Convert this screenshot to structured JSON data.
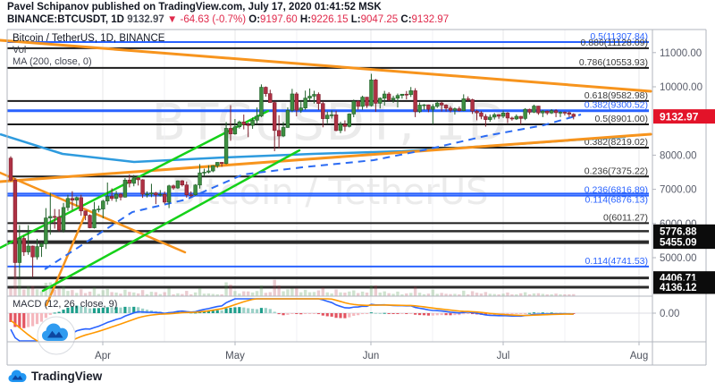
{
  "header": {
    "line1": "Pavel Schipanov published on TradingView.com, July 17, 2020 01:41:52 MSK",
    "symbol_bar": {
      "symbol": "BINANCE:BTCUSDT, 1D",
      "price": "9132.97",
      "change": "▼ -64.63 (-0.7%)",
      "o_label": "O:",
      "o": "9197.60",
      "h_label": "H:",
      "h": "9226.15",
      "l_label": "L:",
      "l": "9047.25",
      "c_label": "C:",
      "c": "9132.97"
    }
  },
  "legend": {
    "title": "Bitcoin / TetherUS, 1D, BINANCE",
    "vol": "Vol",
    "ma": "MA (200, close, 0)"
  },
  "watermark": {
    "line1": "BTCUSDT, 1D",
    "line2": "Bitcoin / TetherUS"
  },
  "footer": {
    "brand": "TradingView"
  },
  "macd": {
    "label": "MACD (12, 26, close, 9)",
    "zero_label": "0.00",
    "fast": 12,
    "slow": 26,
    "source": "close",
    "signal": 9
  },
  "colors": {
    "up": "#3E8E41",
    "up_border": "#1F5F28",
    "down": "#AE3144",
    "down_border": "#7E1F2D",
    "vol_up": "rgba(62,142,65,0.25)",
    "vol_down": "rgba(174,49,68,0.25)",
    "fib_black": "#1c1c1c",
    "fib_blue": "#2962FF",
    "orange": "#F7941D",
    "green": "#15d119",
    "ma_blue": "#2E9BDE",
    "dashed_blue": "#2b6bf3",
    "tag_red": "#E31329",
    "tag_black": "#0c0c0c",
    "axis_text": "#5A5E6B",
    "frame": "#B2B5BE",
    "macd_line": "#2962FF",
    "macd_signal": "#FF9800",
    "hist_pos_dark": "#1E9E8B",
    "hist_pos_light": "#9CD1C8",
    "hist_neg_dark": "#E35461",
    "hist_neg_light": "#F5B8BE"
  },
  "chart_data": {
    "type": "candlestick",
    "symbol": "BTCUSDT",
    "exchange": "BINANCE",
    "interval": "1D",
    "title": "Bitcoin / TetherUS, 1D, BINANCE",
    "start_date": "2020-03-11",
    "ylim": [
      4000,
      11500
    ],
    "price_ticks": [
      {
        "label": "11000.00",
        "value": 11000
      },
      {
        "label": "10000.00",
        "value": 10000
      },
      {
        "label": "8000.00",
        "value": 8000
      },
      {
        "label": "7000.00",
        "value": 7000
      },
      {
        "label": "6000.00",
        "value": 6000
      },
      {
        "label": "5000.00",
        "value": 5000
      }
    ],
    "time_ticks": [
      {
        "label": "Apr",
        "x": 115
      },
      {
        "label": "May",
        "x": 263
      },
      {
        "label": "Jun",
        "x": 415
      },
      {
        "label": "Jul",
        "x": 563
      },
      {
        "label": "Aug",
        "x": 715
      }
    ],
    "minor_gridlines_x": [
      184,
      332,
      484,
      632
    ],
    "last_price_tag": {
      "label": "9132.97",
      "value": 9132.97
    },
    "fib_levels": [
      {
        "label": "0.5(11307.84)",
        "value": 11307.84,
        "style": "blue",
        "width": 2
      },
      {
        "label": "0.886(11128.09)",
        "value": 11128.09,
        "style": "black",
        "width": 2
      },
      {
        "label": "0.786(10553.93)",
        "value": 10553.93,
        "style": "black",
        "width": 2
      },
      {
        "label": "0.618(9582.98)",
        "value": 9582.98,
        "style": "black",
        "width": 2
      },
      {
        "label": "0.382(9300.52)",
        "value": 9300.52,
        "style": "blue-bold",
        "width": 3
      },
      {
        "label": "0.5(8901.00)",
        "value": 8901.0,
        "style": "black",
        "width": 2
      },
      {
        "label": "0.382(8219.02)",
        "value": 8219.02,
        "style": "black",
        "width": 2
      },
      {
        "label": "0.236(7375.22)",
        "value": 7375.22,
        "style": "black",
        "width": 2
      },
      {
        "label": "0.236(6816.89)",
        "value": 6816.89,
        "style": "blue",
        "width": 2
      },
      {
        "label": "0.114(6876.13)",
        "value": 6876.13,
        "style": "blue",
        "width": 2,
        "label_below": true
      },
      {
        "label": "0(6011.27)",
        "value": 6011.27,
        "style": "black",
        "width": 2
      },
      {
        "label": "0.114(4741.53)",
        "value": 4741.53,
        "style": "blue",
        "width": 2
      }
    ],
    "price_lines": [
      {
        "label": "5455.09",
        "value": 5455.09,
        "width": 4
      },
      {
        "label": "5776.88",
        "value": 5776.88,
        "width": 2.5
      },
      {
        "label": "4406.71",
        "value": 4406.71,
        "width": 3
      },
      {
        "label": "4136.12",
        "value": 4136.12,
        "width": 3
      }
    ],
    "trendlines": [
      {
        "name": "wedge-upper-orange",
        "color": "orange",
        "width": 3,
        "pts": [
          [
            0,
            45
          ],
          [
            728,
            102
          ]
        ]
      },
      {
        "name": "wedge-lower-orange",
        "color": "orange",
        "width": 3,
        "pts": [
          [
            0,
            203
          ],
          [
            728,
            150
          ]
        ]
      },
      {
        "name": "pennant-upper-orange",
        "color": "orange",
        "width": 2.5,
        "pts": [
          [
            0,
            193
          ],
          [
            207,
            282
          ]
        ]
      },
      {
        "name": "pennant-pole-orange",
        "color": "orange",
        "width": 2.5,
        "pts": [
          [
            52,
            341
          ],
          [
            96,
            238
          ]
        ]
      },
      {
        "name": "channel-upper-green",
        "color": "green",
        "width": 2.5,
        "pts": [
          [
            0,
            277
          ],
          [
            300,
            124
          ]
        ]
      },
      {
        "name": "channel-lower-green",
        "color": "green",
        "width": 2.5,
        "pts": [
          [
            48,
            325
          ],
          [
            335,
            168
          ]
        ]
      }
    ],
    "dashed_trend_polyline": [
      [
        50,
        301
      ],
      [
        148,
        237
      ],
      [
        208,
        223
      ],
      [
        272,
        195
      ],
      [
        338,
        187
      ],
      [
        418,
        179
      ],
      [
        478,
        167
      ],
      [
        543,
        152
      ],
      [
        608,
        140
      ],
      [
        650,
        128
      ]
    ],
    "ma200_path": [
      [
        0,
        150
      ],
      [
        70,
        172
      ],
      [
        150,
        181
      ],
      [
        250,
        176
      ],
      [
        350,
        172
      ],
      [
        450,
        169
      ],
      [
        550,
        163
      ],
      [
        650,
        156
      ],
      [
        700,
        153
      ]
    ],
    "candles": [
      [
        7912,
        7969,
        7231,
        7268
      ],
      [
        7268,
        7330,
        4430,
        4857
      ],
      [
        4857,
        5954,
        4435,
        5563
      ],
      [
        5563,
        5640,
        5050,
        5169
      ],
      [
        5169,
        5950,
        5085,
        5341
      ],
      [
        5341,
        5356,
        4432,
        5022
      ],
      [
        5022,
        5551,
        4941,
        5324
      ],
      [
        5324,
        5447,
        5022,
        5405
      ],
      [
        5405,
        6450,
        5255,
        6162
      ],
      [
        6162,
        6901,
        5672,
        6206
      ],
      [
        6206,
        6424,
        5851,
        6187
      ],
      [
        6187,
        6416,
        5762,
        5812
      ],
      [
        5812,
        6603,
        5737,
        6468
      ],
      [
        6468,
        6839,
        6371,
        6734
      ],
      [
        6734,
        6945,
        6395,
        6684
      ],
      [
        6684,
        6790,
        6498,
        6758
      ],
      [
        6758,
        6840,
        6226,
        6368
      ],
      [
        6368,
        6372,
        6095,
        6240
      ],
      [
        6240,
        6266,
        5860,
        5875
      ],
      [
        5875,
        6631,
        5852,
        6406
      ],
      [
        6406,
        6525,
        6327,
        6424
      ],
      [
        6424,
        6693,
        6154,
        6657
      ],
      [
        6657,
        7199,
        6550,
        6794
      ],
      [
        6794,
        7029,
        6666,
        6733
      ],
      [
        6733,
        6956,
        6634,
        6859
      ],
      [
        6859,
        6898,
        6675,
        6772
      ],
      [
        6772,
        7329,
        6758,
        7271
      ],
      [
        7271,
        7437,
        7057,
        7176
      ],
      [
        7176,
        7420,
        7089,
        7334
      ],
      [
        7334,
        7355,
        7112,
        7280
      ],
      [
        7280,
        7297,
        6750,
        6858
      ],
      [
        6858,
        6940,
        6762,
        6864
      ],
      [
        6864,
        7162,
        6772,
        6894
      ],
      [
        6894,
        6925,
        6567,
        6837
      ],
      [
        6837,
        6978,
        6790,
        6855
      ],
      [
        6855,
        6935,
        6575,
        6625
      ],
      [
        6625,
        7134,
        6451,
        7101
      ],
      [
        7101,
        7139,
        6985,
        7040
      ],
      [
        7040,
        7265,
        7011,
        7249
      ],
      [
        7249,
        7271,
        7081,
        7128
      ],
      [
        7128,
        7229,
        6756,
        6840
      ],
      [
        6840,
        6940,
        6772,
        6839
      ],
      [
        6839,
        7152,
        6816,
        7126
      ],
      [
        7126,
        7738,
        7022,
        7482
      ],
      [
        7482,
        7605,
        7383,
        7502
      ],
      [
        7502,
        7705,
        7464,
        7538
      ],
      [
        7538,
        7700,
        7501,
        7693
      ],
      [
        7693,
        7795,
        7626,
        7789
      ],
      [
        7789,
        7796,
        7658,
        7756
      ],
      [
        7756,
        8969,
        7732,
        8784
      ],
      [
        8784,
        9460,
        8421,
        8620
      ],
      [
        8620,
        9058,
        8597,
        8829
      ],
      [
        8829,
        9011,
        8777,
        8972
      ],
      [
        8972,
        9187,
        8755,
        8895
      ],
      [
        8895,
        8950,
        8527,
        8870
      ],
      [
        8870,
        9100,
        8771,
        9021
      ],
      [
        9021,
        9395,
        8935,
        9142
      ],
      [
        9142,
        10070,
        9112,
        9986
      ],
      [
        9986,
        10010,
        9712,
        9800
      ],
      [
        9800,
        9914,
        9554,
        9539
      ],
      [
        9539,
        9574,
        8117,
        8722
      ],
      [
        8722,
        9168,
        8200,
        8561
      ],
      [
        8561,
        8968,
        8528,
        8810
      ],
      [
        8810,
        9398,
        8793,
        9309
      ],
      [
        9309,
        9939,
        9256,
        9791
      ],
      [
        9791,
        9845,
        9136,
        9316
      ],
      [
        9316,
        9585,
        9237,
        9381
      ],
      [
        9381,
        9888,
        9327,
        9669
      ],
      [
        9669,
        9951,
        9601,
        9726
      ],
      [
        9726,
        9883,
        9511,
        9778
      ],
      [
        9778,
        9836,
        9320,
        9511
      ],
      [
        9511,
        9577,
        8815,
        9068
      ],
      [
        9068,
        9271,
        8933,
        9170
      ],
      [
        9170,
        9308,
        9071,
        9179
      ],
      [
        9179,
        9298,
        8700,
        8720
      ],
      [
        8720,
        8979,
        8642,
        8900
      ],
      [
        8900,
        9017,
        8700,
        8841
      ],
      [
        8841,
        9225,
        8811,
        9204
      ],
      [
        9204,
        9625,
        9110,
        9575
      ],
      [
        9575,
        9605,
        9330,
        9426
      ],
      [
        9426,
        9740,
        9331,
        9697
      ],
      [
        9697,
        9700,
        9381,
        9448
      ],
      [
        9448,
        10380,
        9421,
        10200
      ],
      [
        10200,
        10228,
        9266,
        9518
      ],
      [
        9518,
        9690,
        9365,
        9666
      ],
      [
        9666,
        9881,
        9450,
        9789
      ],
      [
        9789,
        9845,
        9582,
        9620
      ],
      [
        9620,
        9740,
        9531,
        9666
      ],
      [
        9666,
        9802,
        9395,
        9746
      ],
      [
        9746,
        9790,
        9655,
        9784
      ],
      [
        9784,
        9877,
        9631,
        9772
      ],
      [
        9772,
        9993,
        9703,
        9885
      ],
      [
        9885,
        9958,
        9113,
        9271
      ],
      [
        9271,
        9542,
        9235,
        9465
      ],
      [
        9465,
        9495,
        9322,
        9473
      ],
      [
        9473,
        9480,
        9255,
        9342
      ],
      [
        9342,
        9495,
        8910,
        9426
      ],
      [
        9426,
        9589,
        9381,
        9526
      ],
      [
        9526,
        9566,
        9277,
        9465
      ],
      [
        9465,
        9489,
        9277,
        9375
      ],
      [
        9375,
        9436,
        9251,
        9313
      ],
      [
        9313,
        9394,
        9187,
        9358
      ],
      [
        9358,
        9420,
        9277,
        9301
      ],
      [
        9301,
        9780,
        9288,
        9648
      ],
      [
        9648,
        9719,
        9570,
        9622
      ],
      [
        9622,
        9650,
        9207,
        9288
      ],
      [
        9288,
        9326,
        9020,
        9237
      ],
      [
        9237,
        9285,
        9051,
        9134
      ],
      [
        9134,
        9201,
        8833,
        9042
      ],
      [
        9042,
        9190,
        8977,
        9113
      ],
      [
        9113,
        9235,
        9043,
        9185
      ],
      [
        9185,
        9201,
        9065,
        9138
      ],
      [
        9138,
        9302,
        9083,
        9232
      ],
      [
        9232,
        9263,
        8937,
        9086
      ],
      [
        9086,
        9126,
        9010,
        9059
      ],
      [
        9059,
        9192,
        9030,
        9135
      ],
      [
        9135,
        9148,
        8893,
        9073
      ],
      [
        9073,
        9375,
        9026,
        9342
      ],
      [
        9342,
        9360,
        9193,
        9255
      ],
      [
        9255,
        9477,
        9232,
        9436
      ],
      [
        9436,
        9440,
        9180,
        9235
      ],
      [
        9235,
        9317,
        9113,
        9288
      ],
      [
        9288,
        9306,
        9178,
        9234
      ],
      [
        9234,
        9345,
        9204,
        9303
      ],
      [
        9303,
        9343,
        9113,
        9242
      ],
      [
        9242,
        9279,
        9113,
        9255
      ],
      [
        9255,
        9279,
        9160,
        9240
      ],
      [
        9240,
        9279,
        9113,
        9197.6
      ],
      [
        9197.6,
        9226.15,
        9047.25,
        9132.97
      ]
    ]
  }
}
